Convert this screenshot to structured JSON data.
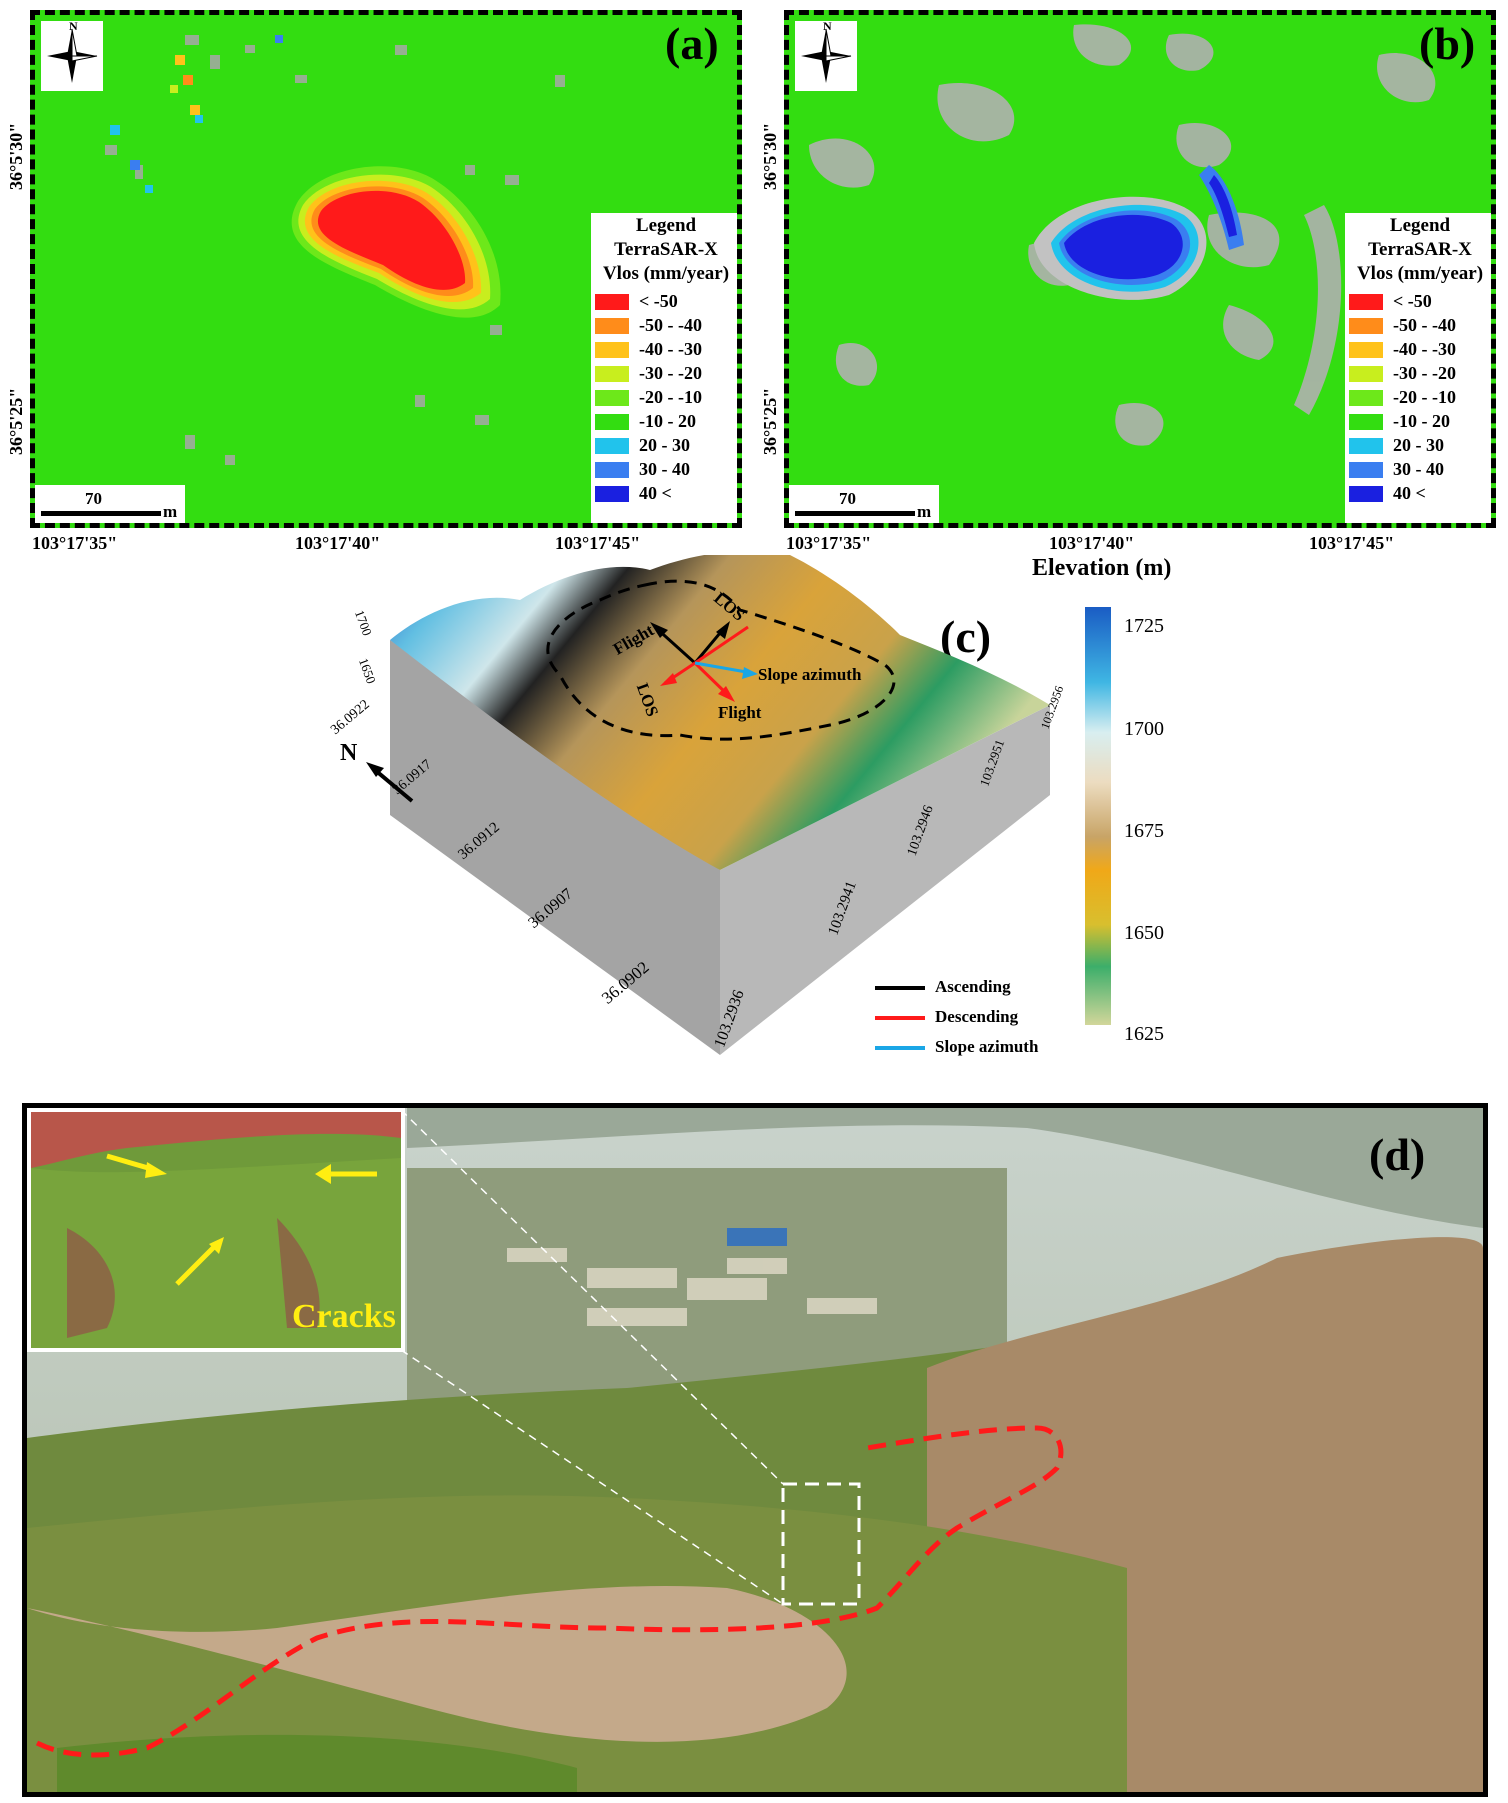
{
  "panel_a": {
    "label": "(a)",
    "north_letter": "N",
    "legend": {
      "title": "Legend",
      "sensor": "TerraSAR-X",
      "unit": "Vlos (mm/year)",
      "classes": [
        {
          "label": "< -50",
          "color": "#ff1a1a"
        },
        {
          "label": "-50 - -40",
          "color": "#ff8c1a"
        },
        {
          "label": "-40 - -30",
          "color": "#ffc21a"
        },
        {
          "label": "-30 - -20",
          "color": "#c8ee1e"
        },
        {
          "label": "-20 - -10",
          "color": "#6de81a"
        },
        {
          "label": "-10 - 20",
          "color": "#33dd11"
        },
        {
          "label": "20 - 30",
          "color": "#21c3ec"
        },
        {
          "label": "30 - 40",
          "color": "#3a7ef0"
        },
        {
          "label": "40 <",
          "color": "#1a20e0"
        }
      ]
    },
    "scale": {
      "value": "70",
      "unit": "m"
    },
    "x_ticks": [
      "103°17'35\"",
      "103°17'40\"",
      "103°17'45\""
    ],
    "y_ticks": [
      "36°5'30\"",
      "36°5'25\""
    ]
  },
  "panel_b": {
    "label": "(b)",
    "north_letter": "N",
    "legend": {
      "title": "Legend",
      "sensor": "TerraSAR-X",
      "unit": "Vlos (mm/year)",
      "classes": [
        {
          "label": "< -50",
          "color": "#ff1a1a"
        },
        {
          "label": "-50 - -40",
          "color": "#ff8c1a"
        },
        {
          "label": "-40 - -30",
          "color": "#ffc21a"
        },
        {
          "label": "-30 - -20",
          "color": "#c8ee1e"
        },
        {
          "label": "-20 - -10",
          "color": "#6de81a"
        },
        {
          "label": "-10 - 20",
          "color": "#33dd11"
        },
        {
          "label": "20 - 30",
          "color": "#21c3ec"
        },
        {
          "label": "30 - 40",
          "color": "#3a7ef0"
        },
        {
          "label": "40 <",
          "color": "#1a20e0"
        }
      ]
    },
    "scale": {
      "value": "70",
      "unit": "m"
    },
    "x_ticks": [
      "103°17'35\"",
      "103°17'40\"",
      "103°17'45\""
    ],
    "y_ticks": [
      "36°5'30\"",
      "36°5'25\""
    ]
  },
  "panel_c": {
    "label": "(c)",
    "colorbar_title": "Elevation (m)",
    "colorbar_ticks": [
      "1725",
      "1700",
      "1675",
      "1650",
      "1625"
    ],
    "z_ticks": [
      "1700",
      "1650"
    ],
    "lat_ticks": [
      "36.0922",
      "36.0917",
      "36.0912",
      "36.0907",
      "36.0902"
    ],
    "lon_ticks": [
      "103.2936",
      "103.2941",
      "103.2946",
      "103.2951",
      "103.2956"
    ],
    "north_letter": "N",
    "arrow_labels": {
      "flight_asc": "Flight",
      "los_asc": "LOS",
      "los_desc": "LOS",
      "flight_desc": "Flight",
      "slope": "Slope azimuth"
    },
    "legend": [
      {
        "label": "Ascending",
        "color": "#000000"
      },
      {
        "label": "Descending",
        "color": "#ff1a1a"
      },
      {
        "label": "Slope azimuth",
        "color": "#1aa6e6"
      }
    ]
  },
  "panel_d": {
    "label": "(d)",
    "inset_caption": "Cracks"
  }
}
